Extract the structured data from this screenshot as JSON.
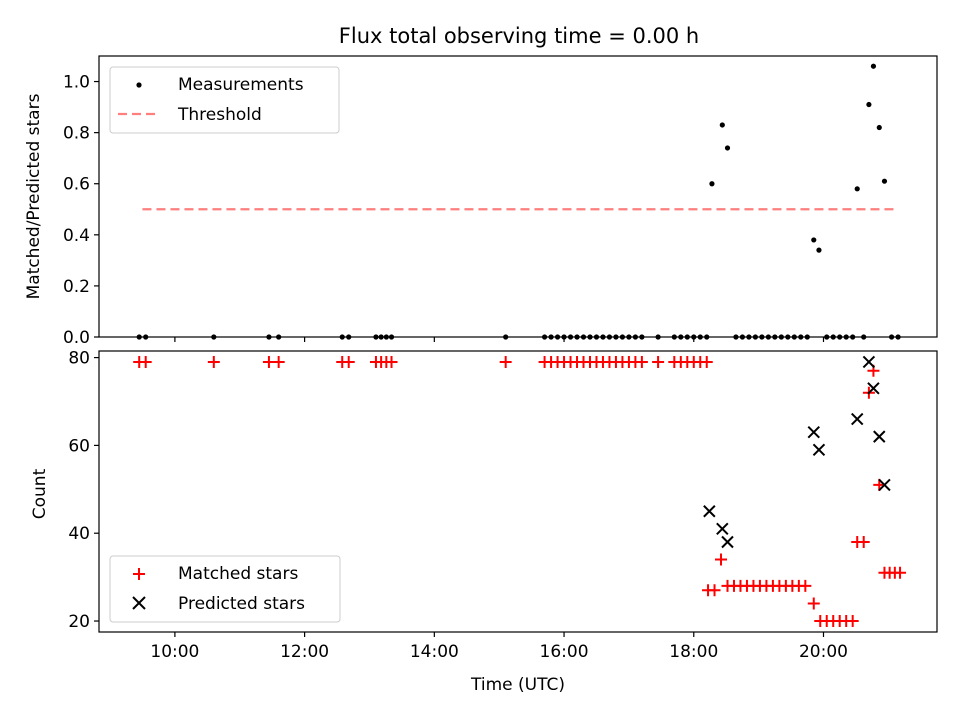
{
  "title": "Flux total observing time = 0.00 h",
  "xlabel": "Time (UTC)",
  "chart_data": [
    {
      "type": "scatter",
      "ylabel": "Matched/Predicted stars",
      "ylim": [
        0,
        1.1
      ],
      "yticks": [
        "0.0",
        "0.2",
        "0.4",
        "0.6",
        "0.8",
        "1.0"
      ],
      "ytick_values": [
        0,
        0.2,
        0.4,
        0.6,
        0.8,
        1.0
      ],
      "legend": {
        "placement": "upper-left",
        "entries": [
          "Measurements",
          "Threshold"
        ]
      },
      "threshold": {
        "name": "Threshold",
        "y": 0.5,
        "x_start": 9.5,
        "x_end": 21.15,
        "color": "#ff7f7f"
      },
      "series": [
        {
          "name": "Measurements",
          "color": "#000000",
          "x": [
            9.45,
            9.55,
            10.6,
            11.45,
            11.6,
            12.58,
            12.68,
            13.1,
            13.18,
            13.26,
            13.34,
            15.1,
            15.7,
            15.8,
            15.9,
            16.0,
            16.1,
            16.2,
            16.3,
            16.4,
            16.5,
            16.6,
            16.7,
            16.8,
            16.9,
            17.0,
            17.1,
            17.2,
            17.45,
            17.7,
            17.8,
            17.9,
            18.0,
            18.1,
            18.2,
            18.28,
            18.44,
            18.52,
            18.65,
            18.75,
            18.85,
            18.95,
            19.05,
            19.15,
            19.25,
            19.35,
            19.45,
            19.55,
            19.65,
            19.75,
            19.85,
            19.93,
            20.05,
            20.15,
            20.25,
            20.35,
            20.45,
            20.52,
            20.62,
            20.7,
            20.77,
            20.86,
            20.94,
            21.05,
            21.15
          ],
          "y": [
            0,
            0,
            0,
            0,
            0,
            0,
            0,
            0,
            0,
            0,
            0,
            0,
            0,
            0,
            0,
            0,
            0,
            0,
            0,
            0,
            0,
            0,
            0,
            0,
            0,
            0,
            0,
            0,
            0,
            0,
            0,
            0,
            0,
            0,
            0,
            0.6,
            0.83,
            0.74,
            0,
            0,
            0,
            0,
            0,
            0,
            0,
            0,
            0,
            0,
            0,
            0,
            0.38,
            0.34,
            0,
            0,
            0,
            0,
            0,
            0.58,
            0,
            0.91,
            1.06,
            0.82,
            0.61,
            0,
            0
          ]
        }
      ]
    },
    {
      "type": "scatter",
      "ylabel": "Count",
      "ylim": [
        17.5,
        81.5
      ],
      "yticks": [
        "20",
        "40",
        "60",
        "80"
      ],
      "ytick_values": [
        20,
        40,
        60,
        80
      ],
      "xlim": [
        8.83,
        21.75
      ],
      "xticks": [
        "10:00",
        "12:00",
        "14:00",
        "16:00",
        "18:00",
        "20:00"
      ],
      "xtick_values": [
        10,
        12,
        14,
        16,
        18,
        20
      ],
      "legend": {
        "placement": "lower-left",
        "entries": [
          "Matched stars",
          "Predicted stars"
        ]
      },
      "series": [
        {
          "name": "Matched stars",
          "marker": "+",
          "color": "#ff0000",
          "x": [
            9.45,
            9.55,
            10.6,
            11.45,
            11.6,
            12.58,
            12.68,
            13.1,
            13.18,
            13.26,
            13.34,
            15.1,
            15.7,
            15.8,
            15.9,
            16.0,
            16.1,
            16.2,
            16.3,
            16.4,
            16.5,
            16.6,
            16.7,
            16.8,
            16.9,
            17.0,
            17.1,
            17.2,
            17.45,
            17.7,
            17.8,
            17.9,
            18.0,
            18.1,
            18.2,
            18.22,
            18.32,
            18.42,
            18.52,
            18.62,
            18.72,
            18.82,
            18.92,
            19.02,
            19.12,
            19.22,
            19.32,
            19.42,
            19.52,
            19.62,
            19.72,
            19.85,
            19.95,
            20.05,
            20.15,
            20.25,
            20.35,
            20.45,
            20.52,
            20.62,
            20.7,
            20.77,
            20.86,
            20.94,
            21.02,
            21.1,
            21.18
          ],
          "y": [
            79,
            79,
            79,
            79,
            79,
            79,
            79,
            79,
            79,
            79,
            79,
            79,
            79,
            79,
            79,
            79,
            79,
            79,
            79,
            79,
            79,
            79,
            79,
            79,
            79,
            79,
            79,
            79,
            79,
            79,
            79,
            79,
            79,
            79,
            79,
            27,
            27,
            34,
            28,
            28,
            28,
            28,
            28,
            28,
            28,
            28,
            28,
            28,
            28,
            28,
            28,
            24,
            20,
            20,
            20,
            20,
            20,
            20,
            38,
            38,
            72,
            77,
            51,
            31,
            31,
            31,
            31
          ]
        },
        {
          "name": "Predicted stars",
          "marker": "x",
          "color": "#000000",
          "x": [
            18.24,
            18.44,
            18.52,
            19.85,
            19.93,
            20.52,
            20.7,
            20.77,
            20.86,
            20.94
          ],
          "y": [
            45,
            41,
            38,
            63,
            59,
            66,
            79,
            73,
            62,
            51
          ]
        }
      ]
    }
  ]
}
